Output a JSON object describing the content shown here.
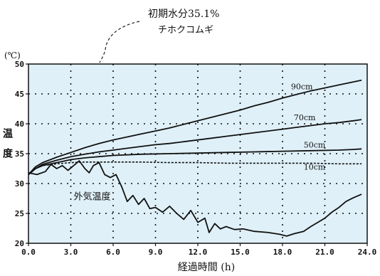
{
  "chart_data": {
    "type": "line",
    "annotation": {
      "line1": "初期水分35.1%",
      "line2": "チホクコムギ"
    },
    "xlabel": "経過時間 (h)",
    "ylabel": "温度",
    "yunit": "(℃)",
    "xlim": [
      0,
      24
    ],
    "ylim": [
      20,
      50
    ],
    "xticks": [
      "0.0",
      "3.0",
      "6.0",
      "9.0",
      "12.0",
      "15.0",
      "18.0",
      "21.0",
      "24.0"
    ],
    "yticks": [
      "20",
      "25",
      "30",
      "35",
      "40",
      "45",
      "50"
    ],
    "grid": true,
    "background": "#dff0f8",
    "series": [
      {
        "name": "90cm",
        "style": "solid",
        "label_at": [
          18.6,
          45.8
        ],
        "x": [
          0,
          0.5,
          1,
          2,
          3,
          4,
          5,
          6,
          7,
          8,
          9,
          10,
          11,
          12,
          13,
          14,
          15,
          16,
          17,
          18,
          19,
          20,
          21,
          22,
          23,
          23.6
        ],
        "y": [
          31.5,
          32.8,
          33.5,
          34.4,
          35.2,
          36.0,
          36.7,
          37.3,
          37.8,
          38.3,
          38.8,
          39.3,
          39.9,
          40.5,
          41.1,
          41.7,
          42.3,
          43.0,
          43.6,
          44.3,
          44.9,
          45.5,
          46.0,
          46.5,
          47.0,
          47.3
        ]
      },
      {
        "name": "70cm",
        "style": "solid",
        "label_at": [
          18.8,
          40.6
        ],
        "x": [
          0,
          0.5,
          1,
          2,
          3,
          4,
          5,
          6,
          7,
          8,
          9,
          10,
          11,
          12,
          13,
          14,
          15,
          16,
          17,
          18,
          19,
          20,
          21,
          22,
          23,
          23.6
        ],
        "y": [
          31.5,
          32.5,
          33.2,
          33.9,
          34.5,
          34.9,
          35.3,
          35.6,
          35.9,
          36.2,
          36.5,
          36.7,
          37.0,
          37.3,
          37.6,
          37.9,
          38.2,
          38.5,
          38.8,
          39.1,
          39.4,
          39.7,
          40.0,
          40.2,
          40.5,
          40.7
        ]
      },
      {
        "name": "50cm",
        "style": "solid",
        "label_at": [
          19.5,
          36.0
        ],
        "x": [
          0,
          0.5,
          1,
          2,
          3,
          4,
          5,
          6,
          8,
          10,
          12,
          14,
          16,
          18,
          20,
          22,
          23,
          23.6
        ],
        "y": [
          31.5,
          32.5,
          33.0,
          33.5,
          34.0,
          34.3,
          34.5,
          34.7,
          34.9,
          35.0,
          35.1,
          35.2,
          35.3,
          35.4,
          35.5,
          35.6,
          35.7,
          35.8
        ]
      },
      {
        "name": "10cm",
        "style": "dashed",
        "label_at": [
          19.5,
          32.3
        ],
        "x": [
          0,
          0.5,
          1,
          2,
          3,
          4,
          6,
          8,
          10,
          12,
          14,
          16,
          18,
          20,
          22,
          23.6
        ],
        "y": [
          31.5,
          32.5,
          33.0,
          33.3,
          33.5,
          33.6,
          33.6,
          33.6,
          33.5,
          33.5,
          33.4,
          33.4,
          33.4,
          33.4,
          33.3,
          33.3
        ]
      },
      {
        "name": "外気温度",
        "style": "solid",
        "label_at": [
          3.2,
          27.3
        ],
        "x": [
          0,
          0.6,
          1.2,
          1.6,
          2.0,
          2.4,
          2.8,
          3.2,
          3.6,
          4.0,
          4.3,
          4.6,
          5.0,
          5.4,
          5.8,
          6.2,
          6.6,
          7.0,
          7.4,
          7.8,
          8.2,
          8.6,
          9.0,
          9.5,
          10.0,
          10.5,
          11.0,
          11.5,
          12.0,
          12.5,
          12.8,
          13.2,
          13.6,
          14.0,
          14.6,
          15.2,
          16.0,
          17.0,
          17.8,
          18.3,
          18.8,
          19.5,
          20.0,
          20.5,
          21.0,
          21.5,
          22.0,
          22.5,
          23.0,
          23.6
        ],
        "y": [
          31.8,
          31.5,
          32.0,
          33.2,
          32.5,
          33.0,
          32.2,
          33.0,
          33.8,
          32.5,
          31.8,
          33.0,
          33.5,
          31.5,
          31.0,
          31.5,
          29.5,
          27.0,
          28.0,
          26.5,
          27.5,
          25.8,
          26.0,
          25.2,
          26.2,
          25.0,
          24.0,
          25.5,
          23.5,
          24.2,
          21.8,
          23.3,
          22.4,
          22.8,
          22.3,
          22.4,
          22.0,
          21.8,
          21.5,
          21.2,
          21.6,
          22.0,
          22.8,
          23.5,
          24.2,
          25.2,
          26.0,
          27.0,
          27.6,
          28.2
        ]
      }
    ]
  }
}
